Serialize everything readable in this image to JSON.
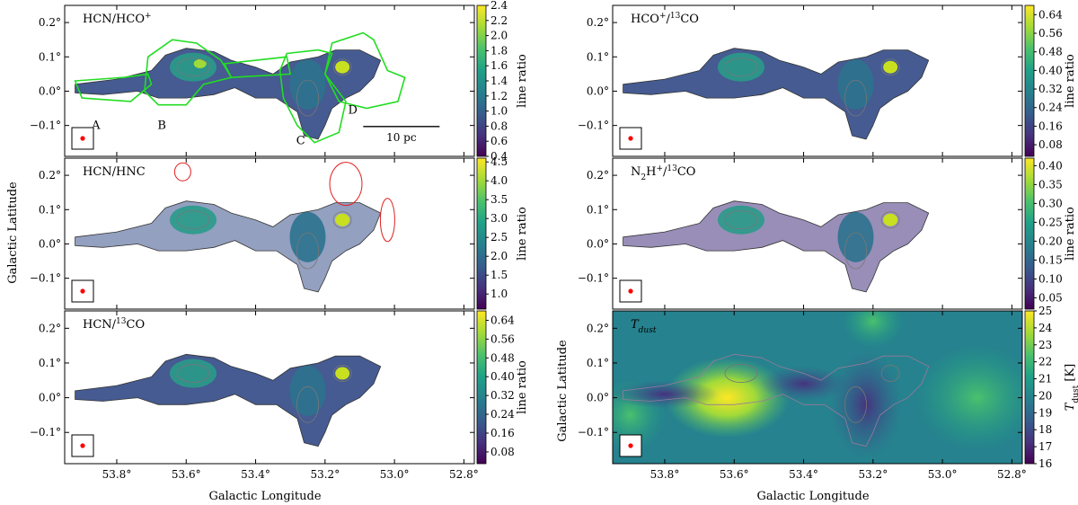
{
  "figure": {
    "axis_labels": {
      "ylabel": "Galactic Latitude",
      "xlabel": "Galactic Longitude"
    },
    "colors": {
      "frame": "#000000",
      "region_outline": "#22dd22",
      "beam_marker": "#ff0000",
      "ellipse_marker": "#e02020",
      "contour": "#777777"
    }
  },
  "chart_data": [
    {
      "id": "hcn-hcop",
      "type": "heatmap",
      "title": "HCN/HCO+",
      "xlim": [
        53.95,
        52.77
      ],
      "ylim": [
        -0.19,
        0.25
      ],
      "yticks": [
        {
          "v": 0.2,
          "label": "0.2°"
        },
        {
          "v": 0.1,
          "label": "0.1°"
        },
        {
          "v": 0.0,
          "label": "0.0°"
        },
        {
          "v": -0.1,
          "label": "−0.1°"
        }
      ],
      "xticks": [
        {
          "v": 53.8,
          "label": "53.8°"
        },
        {
          "v": 53.6,
          "label": "53.6°"
        },
        {
          "v": 53.4,
          "label": "53.4°"
        },
        {
          "v": 53.2,
          "label": "53.2°"
        },
        {
          "v": 53.0,
          "label": "53.0°"
        },
        {
          "v": 52.8,
          "label": "52.8°"
        }
      ],
      "colorbar": {
        "label": "line ratio",
        "range": [
          0.4,
          2.4
        ],
        "ticks": [
          0.4,
          0.6,
          0.8,
          1.0,
          1.2,
          1.4,
          1.6,
          1.8,
          2.0,
          2.2,
          2.4
        ],
        "tick_labels": [
          "0.4",
          "0.6",
          "0.8",
          "1.0",
          "1.2",
          "1.4",
          "1.6",
          "1.8",
          "2.0",
          "2.2",
          "2.4"
        ]
      },
      "regions": [
        {
          "label": "A",
          "l": 53.86,
          "b": -0.11
        },
        {
          "label": "B",
          "l": 53.67,
          "b": -0.11
        },
        {
          "label": "C",
          "l": 53.27,
          "b": -0.155
        },
        {
          "label": "D",
          "l": 53.12,
          "b": -0.065
        }
      ],
      "scale_bar": {
        "label": "10 pc",
        "l_start": 53.09,
        "l_end": 52.87,
        "b": -0.103
      }
    },
    {
      "id": "hcn-hnc",
      "type": "heatmap",
      "title": "HCN/HNC",
      "xlim": [
        53.95,
        52.77
      ],
      "ylim": [
        -0.19,
        0.25
      ],
      "yticks": [
        {
          "v": 0.2,
          "label": "0.2°"
        },
        {
          "v": 0.1,
          "label": "0.1°"
        },
        {
          "v": 0.0,
          "label": "0.0°"
        },
        {
          "v": -0.1,
          "label": "−0.1°"
        }
      ],
      "xticks": [
        {
          "v": 53.8,
          "label": "53.8°"
        },
        {
          "v": 53.6,
          "label": "53.6°"
        },
        {
          "v": 53.4,
          "label": "53.4°"
        },
        {
          "v": 53.2,
          "label": "53.2°"
        },
        {
          "v": 53.0,
          "label": "53.0°"
        },
        {
          "v": 52.8,
          "label": "52.8°"
        }
      ],
      "colorbar": {
        "label": "line ratio",
        "range": [
          0.6,
          4.6
        ],
        "ticks": [
          1.0,
          1.5,
          2.0,
          2.5,
          3.0,
          3.5,
          4.0,
          4.5
        ],
        "tick_labels": [
          "1.0",
          "1.5",
          "2.0",
          "2.5",
          "3.0",
          "3.5",
          "4.0",
          "4.5"
        ]
      }
    },
    {
      "id": "hcn-13co",
      "type": "heatmap",
      "title": "HCN/13CO",
      "xlim": [
        53.95,
        52.77
      ],
      "ylim": [
        -0.19,
        0.25
      ],
      "yticks": [
        {
          "v": 0.2,
          "label": "0.2°"
        },
        {
          "v": 0.1,
          "label": "0.1°"
        },
        {
          "v": 0.0,
          "label": "0.0°"
        },
        {
          "v": -0.1,
          "label": "−0.1°"
        }
      ],
      "xticks": [
        {
          "v": 53.8,
          "label": "53.8°"
        },
        {
          "v": 53.6,
          "label": "53.6°"
        },
        {
          "v": 53.4,
          "label": "53.4°"
        },
        {
          "v": 53.2,
          "label": "53.2°"
        },
        {
          "v": 53.0,
          "label": "53.0°"
        },
        {
          "v": 52.8,
          "label": "52.8°"
        }
      ],
      "colorbar": {
        "label": "line ratio",
        "range": [
          0.03,
          0.68
        ],
        "ticks": [
          0.08,
          0.16,
          0.24,
          0.32,
          0.4,
          0.48,
          0.56,
          0.64
        ],
        "tick_labels": [
          "0.08",
          "0.16",
          "0.24",
          "0.32",
          "0.40",
          "0.48",
          "0.56",
          "0.64"
        ]
      }
    },
    {
      "id": "hcop-13co",
      "type": "heatmap",
      "title": "HCO+/13CO",
      "xlim": [
        53.95,
        52.77
      ],
      "ylim": [
        -0.19,
        0.25
      ],
      "yticks": [
        {
          "v": 0.2,
          "label": "0.2°"
        },
        {
          "v": 0.1,
          "label": "0.1°"
        },
        {
          "v": 0.0,
          "label": "0.0°"
        },
        {
          "v": -0.1,
          "label": "−0.1°"
        }
      ],
      "xticks": [
        {
          "v": 53.8,
          "label": "53.8°"
        },
        {
          "v": 53.6,
          "label": "53.6°"
        },
        {
          "v": 53.4,
          "label": "53.4°"
        },
        {
          "v": 53.2,
          "label": "53.2°"
        },
        {
          "v": 53.0,
          "label": "53.0°"
        },
        {
          "v": 52.8,
          "label": "52.8°"
        }
      ],
      "colorbar": {
        "label": "line ratio",
        "range": [
          0.03,
          0.68
        ],
        "ticks": [
          0.08,
          0.16,
          0.24,
          0.32,
          0.4,
          0.48,
          0.56,
          0.64
        ],
        "tick_labels": [
          "0.08",
          "0.16",
          "0.24",
          "0.32",
          "0.40",
          "0.48",
          "0.56",
          "0.64"
        ]
      }
    },
    {
      "id": "n2hp-13co",
      "type": "heatmap",
      "title": "N2H+/13CO",
      "xlim": [
        53.95,
        52.77
      ],
      "ylim": [
        -0.19,
        0.25
      ],
      "yticks": [
        {
          "v": 0.2,
          "label": "0.2°"
        },
        {
          "v": 0.1,
          "label": "0.1°"
        },
        {
          "v": 0.0,
          "label": "0.0°"
        },
        {
          "v": -0.1,
          "label": "−0.1°"
        }
      ],
      "xticks": [
        {
          "v": 53.8,
          "label": "53.8°"
        },
        {
          "v": 53.6,
          "label": "53.6°"
        },
        {
          "v": 53.4,
          "label": "53.4°"
        },
        {
          "v": 53.2,
          "label": "53.2°"
        },
        {
          "v": 53.0,
          "label": "53.0°"
        },
        {
          "v": 52.8,
          "label": "52.8°"
        }
      ],
      "colorbar": {
        "label": "line ratio",
        "range": [
          0.02,
          0.42
        ],
        "ticks": [
          0.05,
          0.1,
          0.15,
          0.2,
          0.25,
          0.3,
          0.35,
          0.4
        ],
        "tick_labels": [
          "0.05",
          "0.10",
          "0.15",
          "0.20",
          "0.25",
          "0.30",
          "0.35",
          "0.40"
        ]
      }
    },
    {
      "id": "tdust",
      "type": "heatmap",
      "title": "Tdust",
      "xlim": [
        53.95,
        52.77
      ],
      "ylim": [
        -0.19,
        0.25
      ],
      "yticks": [
        {
          "v": 0.2,
          "label": "0.2°"
        },
        {
          "v": 0.1,
          "label": "0.1°"
        },
        {
          "v": 0.0,
          "label": "0.0°"
        },
        {
          "v": -0.1,
          "label": "−0.1°"
        }
      ],
      "xticks": [
        {
          "v": 53.8,
          "label": "53.8°"
        },
        {
          "v": 53.6,
          "label": "53.6°"
        },
        {
          "v": 53.4,
          "label": "53.4°"
        },
        {
          "v": 53.2,
          "label": "53.2°"
        },
        {
          "v": 53.0,
          "label": "53.0°"
        },
        {
          "v": 52.8,
          "label": "52.8°"
        }
      ],
      "colorbar": {
        "label": "Tdust [K]",
        "range": [
          16,
          25
        ],
        "ticks": [
          16,
          17,
          18,
          19,
          20,
          21,
          22,
          23,
          24,
          25
        ],
        "tick_labels": [
          "16",
          "17",
          "18",
          "19",
          "20",
          "21",
          "22",
          "23",
          "24",
          "25"
        ]
      }
    }
  ]
}
